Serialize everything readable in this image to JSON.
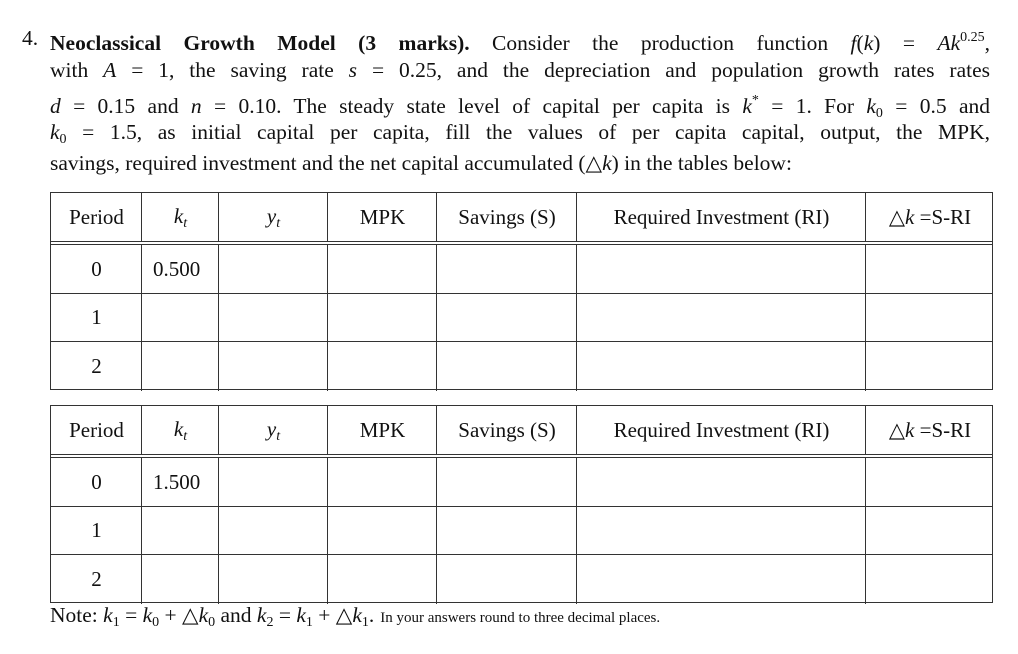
{
  "question": {
    "number": "4.",
    "title": "Neoclassical Growth Model (3 marks).",
    "lines": [
      [
        " Consider the production function ",
        {
          "m": "f"
        },
        "(",
        {
          "m": "k"
        },
        ") = ",
        {
          "m": "Ak"
        },
        {
          "sup": "0.25"
        },
        ","
      ],
      [
        "with ",
        {
          "m": "A"
        },
        " = 1, the saving rate ",
        {
          "m": "s"
        },
        " = 0.25, and the depreciation and population growth rates rates"
      ],
      [
        {
          "m": "d"
        },
        " = 0.15 and ",
        {
          "m": "n"
        },
        " = 0.10. The steady state level of capital per capita is ",
        {
          "m": "k"
        },
        {
          "sup": "*"
        },
        " = 1. For ",
        {
          "m": "k"
        },
        {
          "sub": "0"
        },
        " = 0.5 and"
      ],
      [
        {
          "m": "k"
        },
        {
          "sub": "0"
        },
        " = 1.5, as initial capital per capita, fill the values of per capita capital, output, the MPK,"
      ],
      [
        "savings, required investment and the net capital accumulated (△",
        {
          "m": "k"
        },
        ") in the tables below:"
      ]
    ]
  },
  "tables": [
    {
      "headers": [
        [
          "Period"
        ],
        [
          {
            "m": "k"
          },
          {
            "sub": "t"
          }
        ],
        [
          {
            "m": "y"
          },
          {
            "sub": "t"
          }
        ],
        [
          "MPK"
        ],
        [
          "Savings (S)"
        ],
        [
          "Required Investment (RI)"
        ],
        [
          "△",
          {
            "m": "k"
          },
          " =S-RI"
        ]
      ],
      "rows": [
        [
          "0",
          "0.500"
        ],
        [
          "1"
        ],
        [
          "2"
        ]
      ]
    },
    {
      "headers": [
        [
          "Period"
        ],
        [
          {
            "m": "k"
          },
          {
            "sub": "t"
          }
        ],
        [
          {
            "m": "y"
          },
          {
            "sub": "t"
          }
        ],
        [
          "MPK"
        ],
        [
          "Savings (S)"
        ],
        [
          "Required Investment (RI)"
        ],
        [
          "△",
          {
            "m": "k"
          },
          " =S-RI"
        ]
      ],
      "rows": [
        [
          "0",
          "1.500"
        ],
        [
          "1"
        ],
        [
          "2"
        ]
      ]
    }
  ],
  "note": {
    "main": [
      "Note: ",
      {
        "m": "k"
      },
      {
        "sub": "1"
      },
      " = ",
      {
        "m": "k"
      },
      {
        "sub": "0"
      },
      " + △",
      {
        "m": "k"
      },
      {
        "sub": "0"
      },
      " and ",
      {
        "m": "k"
      },
      {
        "sub": "2"
      },
      " = ",
      {
        "m": "k"
      },
      {
        "sub": "1"
      },
      " + △",
      {
        "m": "k"
      },
      {
        "sub": "1"
      },
      "."
    ],
    "small": "In your answers round to three decimal places."
  }
}
